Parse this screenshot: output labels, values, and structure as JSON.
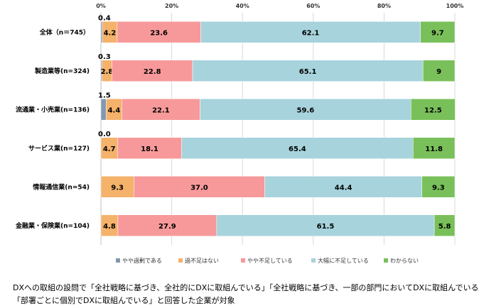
{
  "chart_data": {
    "type": "bar",
    "orientation": "horizontal",
    "stacked": true,
    "percent": true,
    "xlim": [
      0,
      100
    ],
    "ticks": [
      "0%",
      "20%",
      "40%",
      "60%",
      "80%",
      "100%"
    ],
    "categories": [
      "全体（n＝745）",
      "製造業等(n=324)",
      "流通業・小売業(n=136)",
      "サービス業(n=127)",
      "情報通信業(n=54)",
      "金融業・保険業(n=104)"
    ],
    "series": [
      {
        "name": "やや過剰である",
        "color": "#8497b0",
        "values": [
          0.4,
          0.3,
          1.5,
          0.0,
          0,
          0
        ],
        "labels": [
          "0.4",
          "0.3",
          "1.5",
          "0.0",
          "",
          ""
        ]
      },
      {
        "name": "過不足はない",
        "color": "#f4b26b",
        "values": [
          4.2,
          2.8,
          4.4,
          4.7,
          9.3,
          4.8
        ],
        "labels": [
          "4.2",
          "2.8",
          "4.4",
          "4.7",
          "9.3",
          "4.8"
        ]
      },
      {
        "name": "やや不足している",
        "color": "#f7999a",
        "values": [
          23.6,
          22.8,
          22.1,
          18.1,
          37.0,
          27.9
        ],
        "labels": [
          "23.6",
          "22.8",
          "22.1",
          "18.1",
          "37.0",
          "27.9"
        ]
      },
      {
        "name": "大幅に不足している",
        "color": "#a7d3dc",
        "values": [
          62.1,
          65.1,
          59.6,
          65.4,
          44.4,
          61.5
        ],
        "labels": [
          "62.1",
          "65.1",
          "59.6",
          "65.4",
          "44.4",
          "61.5"
        ]
      },
      {
        "name": "わからない",
        "color": "#79c05a",
        "values": [
          9.7,
          9,
          12.5,
          11.8,
          9.3,
          5.8
        ],
        "labels": [
          "9.7",
          "9",
          "12.5",
          "11.8",
          "9.3",
          "5.8"
        ]
      }
    ],
    "legend_position": "bottom",
    "grid": true
  },
  "notes": [
    "DXへの取組の設問で「全社戦略に基づき、全社的にDXに取組んでいる」「全社戦略に基づき、一部の部門においてDXに取組んでいる」",
    "「部署ごとに個別でDXに取組んでいる」と回答した企業が対象"
  ]
}
